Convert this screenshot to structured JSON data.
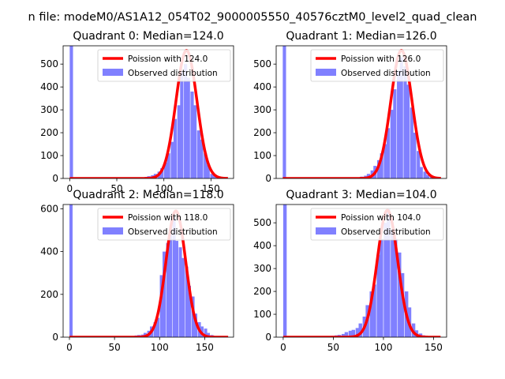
{
  "figure_title": "n file: modeM0/AS1A12_054T02_9000005550_40576cztM0_level2_quad_clean",
  "colors": {
    "curve": "#ff0000",
    "bars": "#8080ff"
  },
  "chart_data": [
    {
      "type": "bar",
      "title": "Quadrant 0: Median=124.0",
      "xlim": [
        -7,
        174
      ],
      "ylim": [
        0,
        580
      ],
      "xticks": [
        0,
        50,
        100,
        150
      ],
      "yticks": [
        0,
        100,
        200,
        300,
        400,
        500
      ],
      "grid": false,
      "legend_position": "top-right",
      "series": [
        {
          "name": "Poission with 124.0",
          "kind": "line",
          "mean": 124.0,
          "peak": 560
        },
        {
          "name": "Observed distribution",
          "kind": "histogram",
          "bin_width": 3.5,
          "start": 0,
          "spike": {
            "x": 0,
            "height": 580
          },
          "bin_centers": [
            70,
            74,
            77,
            81,
            84,
            88,
            91,
            95,
            98,
            102,
            105,
            109,
            112,
            116,
            119,
            123,
            126,
            130,
            133,
            137,
            140,
            144,
            147,
            151,
            154,
            158,
            161,
            165
          ],
          "heights": [
            2,
            3,
            4,
            6,
            10,
            14,
            20,
            30,
            45,
            70,
            110,
            160,
            260,
            320,
            470,
            500,
            440,
            380,
            320,
            210,
            170,
            110,
            60,
            20,
            12,
            6,
            3,
            2
          ]
        }
      ]
    },
    {
      "type": "bar",
      "title": "Quadrant 1: Median=126.0",
      "xlim": [
        -7,
        174
      ],
      "ylim": [
        0,
        580
      ],
      "xticks": [],
      "yticks": [
        0,
        100,
        200,
        300,
        400,
        500
      ],
      "grid": false,
      "legend_position": "top-right",
      "series": [
        {
          "name": "Poission with 126.0",
          "kind": "line",
          "mean": 126.0,
          "peak": 560
        },
        {
          "name": "Observed distribution",
          "kind": "histogram",
          "bin_width": 3.5,
          "start": 0,
          "spike": {
            "x": 0,
            "height": 580
          },
          "bin_centers": [
            74,
            77,
            81,
            84,
            88,
            91,
            95,
            98,
            102,
            105,
            109,
            112,
            116,
            119,
            123,
            126,
            130,
            133,
            137,
            140,
            144,
            147,
            151,
            154,
            158,
            161
          ],
          "heights": [
            2,
            3,
            5,
            8,
            12,
            20,
            35,
            55,
            80,
            110,
            150,
            220,
            300,
            390,
            470,
            530,
            490,
            410,
            310,
            200,
            120,
            50,
            30,
            15,
            6,
            3
          ]
        }
      ]
    },
    {
      "type": "bar",
      "title": "Quadrant 2: Median=118.0",
      "xlim": [
        -7,
        182
      ],
      "ylim": [
        0,
        620
      ],
      "xticks": [
        0,
        50,
        100,
        150
      ],
      "yticks": [
        0,
        200,
        400,
        600
      ],
      "grid": false,
      "legend_position": "top-right",
      "series": [
        {
          "name": "Poission with 118.0",
          "kind": "line",
          "mean": 118.0,
          "peak": 590
        },
        {
          "name": "Observed distribution",
          "kind": "histogram",
          "bin_width": 3.5,
          "start": 0,
          "spike": {
            "x": 0,
            "height": 620
          },
          "bin_centers": [
            56,
            60,
            63,
            67,
            70,
            74,
            77,
            81,
            84,
            88,
            91,
            95,
            98,
            102,
            105,
            109,
            112,
            116,
            119,
            123,
            126,
            130,
            133,
            137,
            140,
            144,
            147,
            151,
            154,
            158,
            161
          ],
          "heights": [
            2,
            2,
            3,
            4,
            5,
            8,
            10,
            12,
            20,
            30,
            50,
            70,
            90,
            290,
            400,
            440,
            480,
            560,
            450,
            420,
            370,
            330,
            240,
            190,
            110,
            70,
            50,
            40,
            20,
            10,
            5
          ]
        }
      ]
    },
    {
      "type": "bar",
      "title": "Quadrant 3: Median=104.0",
      "xlim": [
        -7,
        163
      ],
      "ylim": [
        0,
        580
      ],
      "xticks": [
        0,
        50,
        100,
        150
      ],
      "yticks": [
        0,
        100,
        200,
        300,
        400,
        500
      ],
      "grid": false,
      "legend_position": "top-right",
      "series": [
        {
          "name": "Poission with 104.0",
          "kind": "line",
          "mean": 104.0,
          "peak": 555
        },
        {
          "name": "Observed distribution",
          "kind": "histogram",
          "bin_width": 3.5,
          "start": 0,
          "spike": {
            "x": 0,
            "height": 580
          },
          "bin_centers": [
            42,
            46,
            49,
            53,
            56,
            60,
            63,
            67,
            70,
            74,
            77,
            81,
            84,
            88,
            91,
            95,
            98,
            102,
            105,
            109,
            112,
            116,
            119,
            123,
            126,
            130,
            133,
            137,
            140,
            144
          ],
          "heights": [
            2,
            4,
            6,
            8,
            10,
            14,
            22,
            28,
            32,
            40,
            60,
            90,
            140,
            200,
            230,
            360,
            430,
            500,
            560,
            470,
            430,
            370,
            280,
            200,
            130,
            60,
            30,
            16,
            8,
            4
          ]
        }
      ]
    }
  ]
}
